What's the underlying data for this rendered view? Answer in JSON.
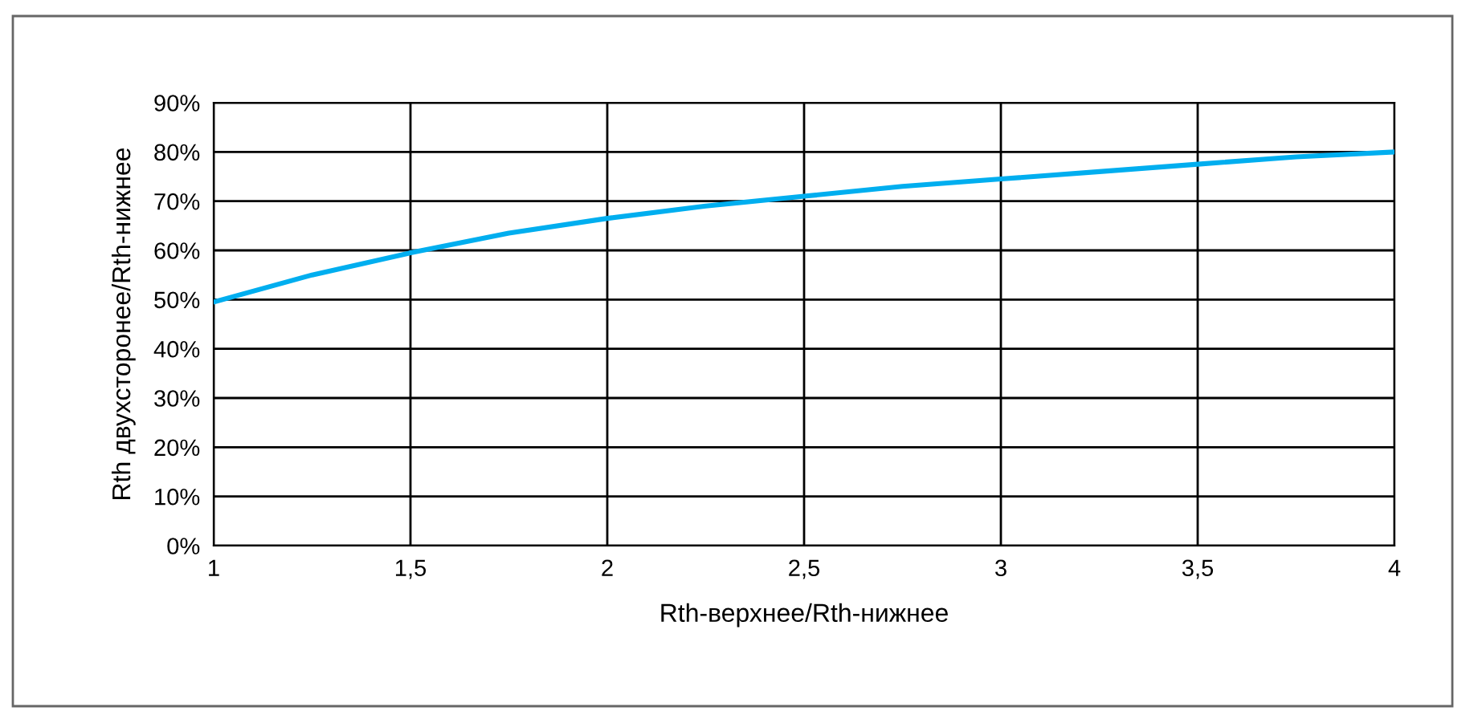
{
  "chart_data": {
    "type": "line",
    "xlabel": "Rth-верхнее/Rth-нижнее",
    "ylabel": "Rth двухсторонее/Rth-нижнее",
    "x": [
      1,
      1.25,
      1.5,
      1.75,
      2,
      2.25,
      2.5,
      2.75,
      3,
      3.25,
      3.5,
      3.75,
      4
    ],
    "series": [
      {
        "color": "#00aeef",
        "values": [
          49.5,
          55,
          59.5,
          63.5,
          66.5,
          69,
          71,
          73,
          74.5,
          76,
          77.5,
          79,
          80
        ]
      }
    ],
    "xlim": [
      1,
      4
    ],
    "xticks": [
      1,
      {
        "value": 1.5,
        "label": "1,5"
      },
      2,
      {
        "value": 2.5,
        "label": "2,5"
      },
      3,
      {
        "value": 3.5,
        "label": "3,5"
      },
      4
    ],
    "ylim": [
      0,
      90
    ],
    "yticks": [
      {
        "value": 0,
        "label": "0%"
      },
      {
        "value": 10,
        "label": "10%"
      },
      {
        "value": 20,
        "label": "20%"
      },
      {
        "value": 30,
        "label": "30%"
      },
      {
        "value": 40,
        "label": "40%"
      },
      {
        "value": 50,
        "label": "50%"
      },
      {
        "value": 60,
        "label": "60%"
      },
      {
        "value": 70,
        "label": "70%"
      },
      {
        "value": 80,
        "label": "80%"
      },
      {
        "value": 90,
        "label": "90%"
      }
    ],
    "grid": true,
    "marker": "none",
    "line_style": "solid"
  }
}
